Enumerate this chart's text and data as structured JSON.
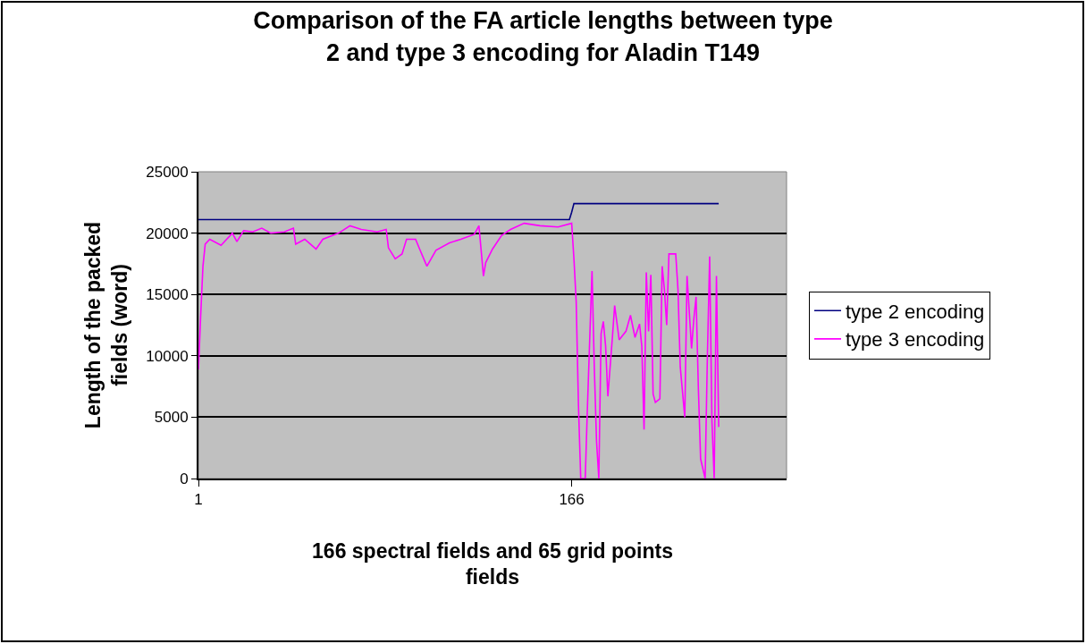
{
  "chart_data": {
    "type": "line",
    "title": "Comparison of the FA article lengths between type\n2 and type 3 encoding for Aladin T149",
    "xlabel": "166 spectral fields and 65 grid points\nfields",
    "ylabel": "Length of the packed\nfields (word)",
    "xlim": [
      1,
      261
    ],
    "xticks": [
      1,
      166
    ],
    "ylim": [
      0,
      25000
    ],
    "yticks": [
      0,
      5000,
      10000,
      15000,
      20000,
      25000
    ],
    "grid": "y",
    "legend": "right",
    "marker": "none",
    "line_style": "solid",
    "series": [
      {
        "name": "type 2 encoding",
        "color": "#000080",
        "x": [
          1,
          165,
          166,
          167,
          231
        ],
        "values": [
          21100,
          21100,
          21700,
          22400,
          22400
        ]
      },
      {
        "name": "type 3 encoding",
        "color": "#ff00ff",
        "x": [
          1,
          2,
          3,
          4,
          6,
          11,
          16,
          18,
          21,
          25,
          29,
          33,
          39,
          43,
          44,
          48,
          53,
          56,
          63,
          68,
          73,
          80,
          84,
          85,
          88,
          91,
          93,
          97,
          99,
          102,
          106,
          112,
          117,
          123,
          125,
          127,
          128,
          131,
          135,
          139,
          145,
          152,
          160,
          166,
          167,
          168,
          169,
          170,
          172,
          173,
          175,
          176,
          177,
          178,
          179,
          180,
          181,
          182,
          184,
          185,
          187,
          190,
          192,
          194,
          196,
          197,
          198,
          199,
          200,
          201,
          202,
          203,
          205,
          206,
          207,
          208,
          209,
          212,
          213,
          214,
          216,
          217,
          219,
          220,
          221,
          222,
          223,
          225,
          226,
          227,
          228,
          229,
          230,
          231
        ],
        "values": [
          8900,
          13300,
          17300,
          19100,
          19500,
          19000,
          20000,
          19300,
          20200,
          20100,
          20400,
          20000,
          20100,
          20400,
          19100,
          19500,
          18700,
          19500,
          20000,
          20600,
          20300,
          20100,
          20300,
          18800,
          17900,
          18300,
          19500,
          19500,
          18600,
          17300,
          18600,
          19200,
          19500,
          19900,
          20600,
          16500,
          17600,
          18700,
          19800,
          20300,
          20800,
          20600,
          20500,
          20800,
          17900,
          14400,
          6000,
          0,
          0,
          6000,
          16900,
          9100,
          3000,
          0,
          11800,
          12800,
          10800,
          6700,
          11500,
          14100,
          11300,
          12000,
          13300,
          11500,
          12600,
          10800,
          4000,
          16800,
          12000,
          16600,
          6900,
          6200,
          6500,
          17300,
          15400,
          12500,
          18300,
          18300,
          15400,
          9100,
          5000,
          16500,
          10600,
          13000,
          14800,
          7400,
          1600,
          0,
          10000,
          18100,
          4700,
          0,
          16500,
          4200
        ]
      }
    ]
  }
}
